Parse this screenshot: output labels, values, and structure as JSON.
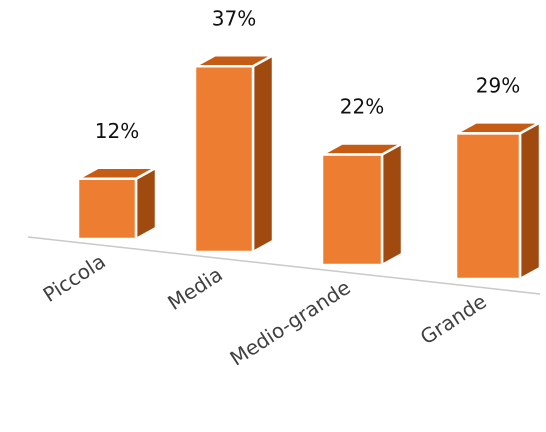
{
  "chart_data": {
    "type": "bar",
    "categories": [
      "Piccola",
      "Media",
      "Medio-grande",
      "Grande"
    ],
    "values": [
      12,
      37,
      22,
      29
    ],
    "value_labels": [
      "12%",
      "37%",
      "22%",
      "29%"
    ],
    "title": "",
    "xlabel": "",
    "ylabel": "",
    "ylim": [
      0,
      40
    ],
    "grid": false,
    "legend": "none",
    "style": "3d-column"
  },
  "colors": {
    "bar_front": "#ed7d31",
    "bar_top": "#c65b14",
    "bar_side": "#a04a10",
    "bar_edge": "#ffffff",
    "axis": "#c9c9c9",
    "label_text": "#404040",
    "value_text": "#111111"
  }
}
